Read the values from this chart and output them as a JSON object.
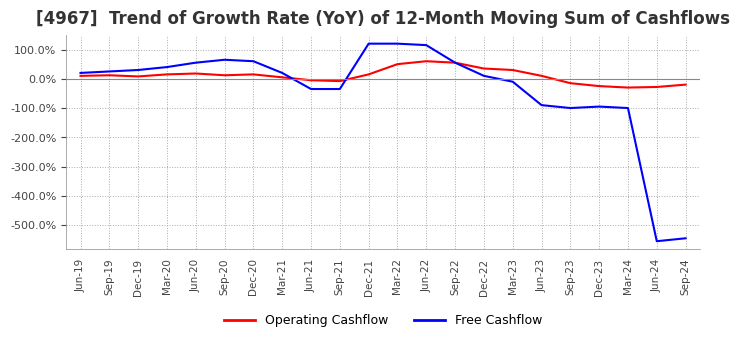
{
  "title": "[4967]  Trend of Growth Rate (YoY) of 12-Month Moving Sum of Cashflows",
  "title_fontsize": 12,
  "ylim": [
    -580,
    150
  ],
  "yticks": [
    100,
    0,
    -100,
    -200,
    -300,
    -400,
    -500
  ],
  "background_color": "#ffffff",
  "grid_color": "#aaaaaa",
  "legend_labels": [
    "Operating Cashflow",
    "Free Cashflow"
  ],
  "legend_colors": [
    "#ff0000",
    "#0000ff"
  ],
  "x_labels": [
    "Jun-19",
    "Sep-19",
    "Dec-19",
    "Mar-20",
    "Jun-20",
    "Sep-20",
    "Dec-20",
    "Mar-21",
    "Jun-21",
    "Sep-21",
    "Dec-21",
    "Mar-22",
    "Jun-22",
    "Sep-22",
    "Dec-22",
    "Mar-23",
    "Jun-23",
    "Sep-23",
    "Dec-23",
    "Mar-24",
    "Jun-24",
    "Sep-24"
  ],
  "operating_cashflow": [
    10,
    12,
    8,
    15,
    18,
    12,
    15,
    5,
    -5,
    -8,
    15,
    50,
    60,
    55,
    35,
    30,
    10,
    -15,
    -25,
    -30,
    -28,
    -20
  ],
  "free_cashflow": [
    20,
    25,
    30,
    40,
    55,
    65,
    60,
    20,
    -35,
    -35,
    120,
    120,
    115,
    55,
    10,
    -10,
    -90,
    -100,
    -95,
    -100,
    -555,
    -545
  ]
}
